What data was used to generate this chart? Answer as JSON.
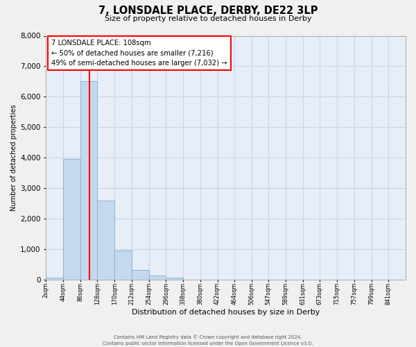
{
  "title": "7, LONSDALE PLACE, DERBY, DE22 3LP",
  "subtitle": "Size of property relative to detached houses in Derby",
  "xlabel": "Distribution of detached houses by size in Derby",
  "ylabel": "Number of detached properties",
  "bar_color": "#c5d8ed",
  "bar_edge_color": "#8ab4d4",
  "bin_edges": [
    2,
    44,
    86,
    128,
    170,
    212,
    254,
    296,
    338,
    380,
    422,
    464,
    506,
    547,
    589,
    631,
    673,
    715,
    757,
    799,
    841
  ],
  "bar_heights": [
    50,
    3950,
    6500,
    2600,
    950,
    320,
    120,
    60,
    0,
    0,
    0,
    0,
    0,
    0,
    0,
    0,
    0,
    0,
    0,
    0
  ],
  "tick_labels": [
    "2sqm",
    "44sqm",
    "86sqm",
    "128sqm",
    "170sqm",
    "212sqm",
    "254sqm",
    "296sqm",
    "338sqm",
    "380sqm",
    "422sqm",
    "464sqm",
    "506sqm",
    "547sqm",
    "589sqm",
    "631sqm",
    "673sqm",
    "715sqm",
    "757sqm",
    "799sqm",
    "841sqm"
  ],
  "ylim": [
    0,
    8000
  ],
  "yticks": [
    0,
    1000,
    2000,
    3000,
    4000,
    5000,
    6000,
    7000,
    8000
  ],
  "property_line_x": 108,
  "annotation_line1": "7 LONSDALE PLACE: 108sqm",
  "annotation_line2": "← 50% of detached houses are smaller (7,216)",
  "annotation_line3": "49% of semi-detached houses are larger (7,032) →",
  "footer_line1": "Contains HM Land Registry data © Crown copyright and database right 2024.",
  "footer_line2": "Contains public sector information licensed under the Open Government Licence v3.0.",
  "plot_bg_color": "#e8eef8",
  "fig_bg_color": "#f0f0f0",
  "grid_color": "#c8d4e8"
}
